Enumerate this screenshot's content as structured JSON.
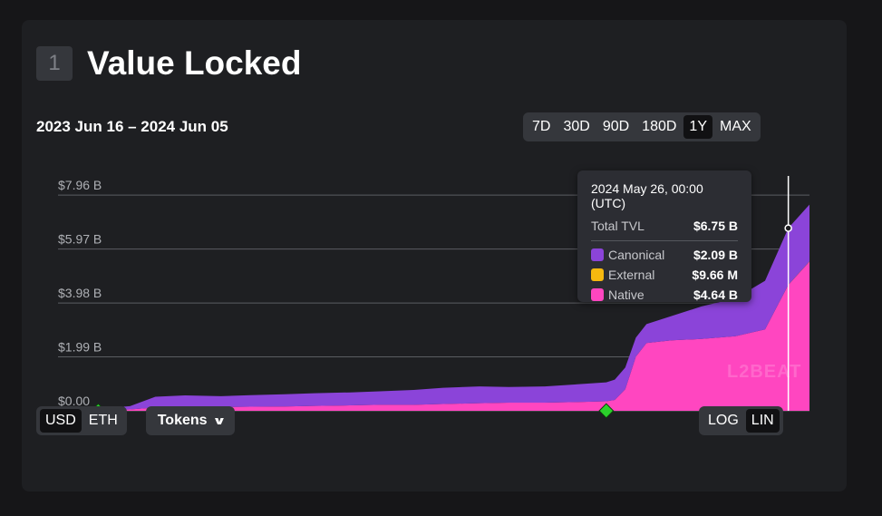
{
  "header": {
    "number": "1",
    "title": "Value Locked"
  },
  "date_range": "2023 Jun 16 – 2024 Jun 05",
  "timeframes": [
    {
      "label": "7D",
      "active": false
    },
    {
      "label": "30D",
      "active": false
    },
    {
      "label": "90D",
      "active": false
    },
    {
      "label": "180D",
      "active": false
    },
    {
      "label": "1Y",
      "active": true
    },
    {
      "label": "MAX",
      "active": false
    }
  ],
  "units": [
    {
      "label": "USD",
      "active": true
    },
    {
      "label": "ETH",
      "active": false
    }
  ],
  "tokens_label": "Tokens",
  "scales": [
    {
      "label": "LOG",
      "active": false
    },
    {
      "label": "LIN",
      "active": true
    }
  ],
  "watermark": "L2BEAT",
  "tooltip": {
    "date": "2024 May 26, 00:00 (UTC)",
    "total_label": "Total TVL",
    "total_value": "$6.75 B",
    "rows": [
      {
        "label": "Canonical",
        "value": "$2.09 B",
        "color": "#8b44d9"
      },
      {
        "label": "External",
        "value": "$9.66 M",
        "color": "#f5b80f"
      },
      {
        "label": "Native",
        "value": "$4.64 B",
        "color": "#ff46c0"
      }
    ]
  },
  "colors": {
    "canonical": "#8b44d9",
    "external": "#f5b80f",
    "native": "#ff46c0",
    "grid": "#5b5d62",
    "marker": "#2bd12b"
  },
  "chart_data": {
    "type": "area",
    "stacked": true,
    "x_range": [
      "2023-06-16",
      "2024-06-05"
    ],
    "y_tick_labels": [
      "$0.00",
      "$1.99 B",
      "$3.98 B",
      "$5.97 B",
      "$7.96 B"
    ],
    "ylim": [
      0,
      8.6
    ],
    "y_unit": "B USD",
    "x": [
      "2023-06-16",
      "2023-07-05",
      "2023-07-20",
      "2023-08-01",
      "2023-08-15",
      "2023-09-01",
      "2023-09-15",
      "2023-10-01",
      "2023-10-15",
      "2023-11-01",
      "2023-11-15",
      "2023-12-01",
      "2023-12-15",
      "2024-01-01",
      "2024-01-15",
      "2024-02-01",
      "2024-02-15",
      "2024-03-01",
      "2024-03-05",
      "2024-03-10",
      "2024-03-15",
      "2024-03-20",
      "2024-04-01",
      "2024-04-15",
      "2024-05-01",
      "2024-05-15",
      "2024-05-26",
      "2024-06-05"
    ],
    "series": [
      {
        "name": "Native",
        "values": [
          0.0,
          0.02,
          0.05,
          0.12,
          0.15,
          0.14,
          0.15,
          0.16,
          0.18,
          0.2,
          0.22,
          0.22,
          0.25,
          0.28,
          0.3,
          0.3,
          0.32,
          0.35,
          0.4,
          0.8,
          2.0,
          2.5,
          2.6,
          2.65,
          2.75,
          3.0,
          4.64,
          5.5
        ]
      },
      {
        "name": "External",
        "values": [
          0.0,
          0.0,
          0.0,
          0.0,
          0.0,
          0.0,
          0.0,
          0.0,
          0.0,
          0.0,
          0.0,
          0.0,
          0.0,
          0.0,
          0.0,
          0.0,
          0.0,
          0.0,
          0.0,
          0.0,
          0.0,
          0.0,
          0.0,
          0.0,
          0.0,
          0.0,
          0.00966,
          0.01
        ]
      },
      {
        "name": "Canonical",
        "values": [
          0.0,
          0.05,
          0.12,
          0.4,
          0.42,
          0.4,
          0.43,
          0.45,
          0.47,
          0.48,
          0.5,
          0.55,
          0.6,
          0.62,
          0.58,
          0.6,
          0.65,
          0.7,
          0.75,
          0.8,
          0.7,
          0.7,
          0.9,
          1.2,
          1.4,
          1.8,
          2.09,
          2.1
        ]
      }
    ],
    "markers": [
      "2023-07-05",
      "2024-03-01"
    ],
    "hover_x": "2024-05-26"
  }
}
